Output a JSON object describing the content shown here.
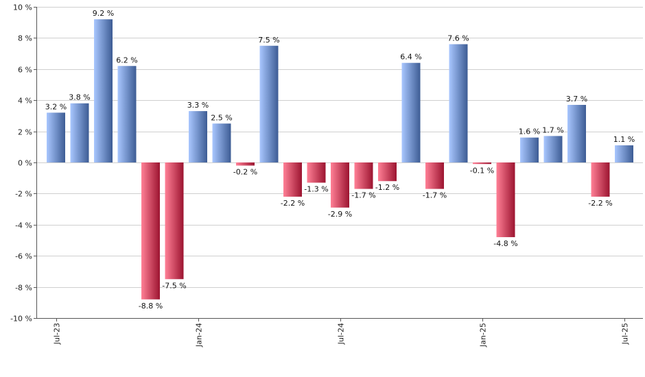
{
  "chart_data": {
    "type": "bar",
    "title": "",
    "xlabel": "",
    "ylabel": "",
    "ylim": [
      -10,
      10
    ],
    "y_ticks": [
      10,
      8,
      6,
      4,
      2,
      0,
      -2,
      -4,
      -6,
      -8,
      -10
    ],
    "y_tick_labels": [
      "10 %",
      "8 %",
      "6 %",
      "4 %",
      "2 %",
      "0 %",
      "-2 %",
      "-4 %",
      "-6 %",
      "-8 %",
      "-10 %"
    ],
    "grid": true,
    "legend": "none",
    "categories": [
      "2023-07",
      "2023-08",
      "2023-09",
      "2023-10",
      "2023-11",
      "2023-12",
      "2024-01",
      "2024-02",
      "2024-03",
      "2024-04",
      "2024-05",
      "2024-06",
      "2024-07",
      "2024-08",
      "2024-09",
      "2024-10",
      "2024-11",
      "2024-12",
      "2025-01",
      "2025-02",
      "2025-03",
      "2025-04",
      "2025-05",
      "2025-06",
      "2025-07"
    ],
    "values": [
      3.2,
      3.8,
      9.2,
      6.2,
      -8.8,
      -7.5,
      3.3,
      2.5,
      -0.2,
      7.5,
      -2.2,
      -1.3,
      -2.9,
      -1.7,
      -1.2,
      6.4,
      -1.7,
      7.6,
      -0.1,
      -4.8,
      1.6,
      1.7,
      3.7,
      -2.2,
      1.1
    ],
    "value_labels": [
      "3.2 %",
      "3.8 %",
      "9.2 %",
      "6.2 %",
      "-8.8 %",
      "-7.5 %",
      "3.3 %",
      "2.5 %",
      "-0.2 %",
      "7.5 %",
      "-2.2 %",
      "-1.3 %",
      "-2.9 %",
      "-1.7 %",
      "-1.2 %",
      "6.4 %",
      "-1.7 %",
      "7.6 %",
      "-0.1 %",
      "-4.8 %",
      "1.6 %",
      "1.7 %",
      "3.7 %",
      "-2.2 %",
      "1.1 %"
    ],
    "x_tick_labels": [
      {
        "index": 0,
        "label": "Jul-23"
      },
      {
        "index": 6,
        "label": "Jan-24"
      },
      {
        "index": 12,
        "label": "Jul-24"
      },
      {
        "index": 18,
        "label": "Jan-25"
      },
      {
        "index": 24,
        "label": "Jul-25"
      }
    ],
    "colors": {
      "positive_light": "#a9c7ff",
      "positive_dark": "#3d5c94",
      "negative_light": "#ff8096",
      "negative_dark": "#9c1430",
      "grid": "#cfcfcf",
      "axis": "#555555"
    }
  }
}
